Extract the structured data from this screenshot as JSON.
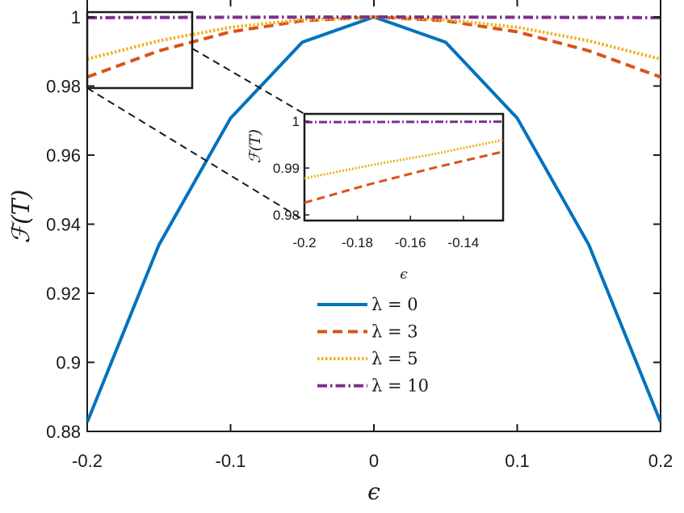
{
  "chart_data": [
    {
      "type": "line",
      "xlabel": "ϵ",
      "ylabel": "ℱ(T)",
      "xlim": [
        -0.2,
        0.2
      ],
      "ylim": [
        0.88,
        1.0
      ],
      "x_ticks": [
        "-0.2",
        "-0.1",
        "0",
        "0.1",
        "0.2"
      ],
      "y_ticks": [
        "0.88",
        "0.9",
        "0.92",
        "0.94",
        "0.96",
        "0.98",
        "1"
      ],
      "legend_position": "center-bottom",
      "grid": false,
      "series": [
        {
          "name": "λ = 0",
          "color": "#0072BD",
          "dash": "solid",
          "x": [
            -0.2,
            -0.15,
            -0.1,
            -0.05,
            0,
            0.05,
            0.1,
            0.15,
            0.2
          ],
          "y": [
            0.8827,
            0.934,
            0.9707,
            0.9927,
            1.0,
            0.9927,
            0.9707,
            0.934,
            0.8827
          ]
        },
        {
          "name": "λ = 3",
          "color": "#D95319",
          "dash": "dashed",
          "x": [
            -0.2,
            -0.15,
            -0.1,
            -0.05,
            0,
            0.05,
            0.1,
            0.15,
            0.2
          ],
          "y": [
            0.9826,
            0.9902,
            0.9957,
            0.9989,
            1.0,
            0.9989,
            0.9957,
            0.9902,
            0.9826
          ]
        },
        {
          "name": "λ = 5",
          "color": "#EDB120",
          "dash": "dotted",
          "x": [
            -0.2,
            -0.15,
            -0.1,
            -0.05,
            0,
            0.05,
            0.1,
            0.15,
            0.2
          ],
          "y": [
            0.9878,
            0.9931,
            0.997,
            0.9992,
            1.0,
            0.9992,
            0.997,
            0.9931,
            0.9878
          ]
        },
        {
          "name": "λ = 10",
          "color": "#7E2F8E",
          "dash": "dashdot",
          "x": [
            -0.2,
            -0.1,
            0,
            0.1,
            0.2
          ],
          "y": [
            0.9998,
            0.9999,
            1.0,
            0.9999,
            0.9998
          ]
        }
      ]
    },
    {
      "type": "line",
      "role": "inset (zoom of left region)",
      "xlabel": "ϵ",
      "ylabel": "ℱ(T)",
      "xlim": [
        -0.2,
        -0.125
      ],
      "ylim": [
        0.98,
        1.0
      ],
      "x_ticks": [
        "-0.2",
        "-0.18",
        "-0.16",
        "-0.14"
      ],
      "y_ticks": [
        "0.98",
        "0.99",
        "1"
      ],
      "series": [
        {
          "name": "λ = 3",
          "color": "#D95319",
          "dash": "dashed",
          "x": [
            -0.2,
            -0.175,
            -0.15,
            -0.125
          ],
          "y": [
            0.9826,
            0.9866,
            0.9902,
            0.9935
          ]
        },
        {
          "name": "λ = 5",
          "color": "#EDB120",
          "dash": "dotted",
          "x": [
            -0.2,
            -0.175,
            -0.15,
            -0.125
          ],
          "y": [
            0.9878,
            0.9906,
            0.9931,
            0.996
          ]
        },
        {
          "name": "λ = 10",
          "color": "#7E2F8E",
          "dash": "dashdot",
          "x": [
            -0.2,
            -0.125
          ],
          "y": [
            0.9998,
            0.9999
          ]
        }
      ]
    }
  ]
}
